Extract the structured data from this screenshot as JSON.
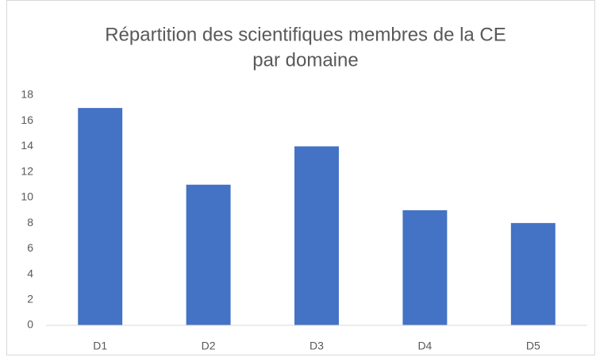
{
  "chart_data": {
    "type": "bar",
    "title": [
      "Répartition des scientifiques membres de la CE",
      "par domaine"
    ],
    "categories": [
      "D1",
      "D2",
      "D3",
      "D4",
      "D5"
    ],
    "values": [
      17,
      11,
      14,
      9,
      8
    ],
    "color": "#4472c4",
    "ylim": [
      0,
      18
    ],
    "yticks": [
      0,
      2,
      4,
      6,
      8,
      10,
      12,
      14,
      16,
      18
    ],
    "grid": false
  }
}
